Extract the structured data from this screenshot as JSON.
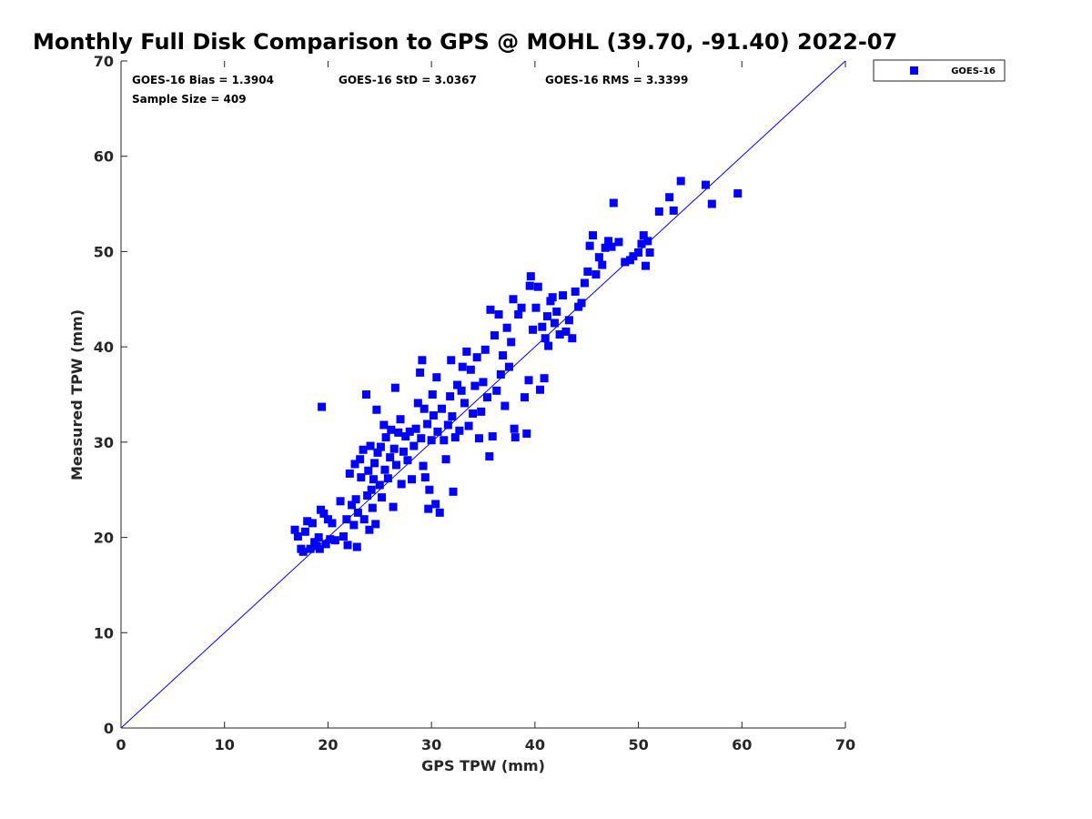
{
  "chart_data": {
    "type": "scatter",
    "title": "Monthly Full Disk Comparison to GPS @ MOHL (39.70, -91.40) 2022-07",
    "xlabel": "GPS TPW (mm)",
    "ylabel": "Measured TPW (mm)",
    "xlim": [
      0,
      70
    ],
    "ylim": [
      0,
      70
    ],
    "xticks": [
      0,
      10,
      20,
      30,
      40,
      50,
      60,
      70
    ],
    "yticks": [
      0,
      10,
      20,
      30,
      40,
      50,
      60,
      70
    ],
    "grid": false,
    "legend_position": "outside top-right",
    "stats": {
      "bias": "GOES-16 Bias = 1.3904",
      "std": "GOES-16 StD = 3.0367",
      "rms": "GOES-16 RMS = 3.3399",
      "sample": "Sample Size = 409"
    },
    "reference_line": {
      "from": [
        0,
        0
      ],
      "to": [
        70,
        70
      ],
      "color": "#0000ff"
    },
    "series": [
      {
        "name": "GOES-16",
        "color": "#0000ff",
        "marker": "square",
        "points": [
          [
            16.8,
            20.8
          ],
          [
            17.1,
            20.1
          ],
          [
            17.4,
            18.8
          ],
          [
            17.6,
            18.5
          ],
          [
            17.8,
            20.6
          ],
          [
            18.0,
            21.7
          ],
          [
            18.3,
            18.8
          ],
          [
            18.5,
            21.5
          ],
          [
            18.7,
            19.5
          ],
          [
            18.9,
            19.1
          ],
          [
            19.1,
            20.0
          ],
          [
            19.2,
            18.8
          ],
          [
            19.3,
            22.9
          ],
          [
            19.4,
            33.7
          ],
          [
            19.6,
            22.5
          ],
          [
            19.8,
            19.3
          ],
          [
            20.0,
            21.9
          ],
          [
            20.2,
            19.8
          ],
          [
            20.4,
            21.5
          ],
          [
            20.7,
            19.7
          ],
          [
            21.2,
            23.8
          ],
          [
            21.5,
            20.1
          ],
          [
            21.8,
            21.9
          ],
          [
            21.9,
            19.2
          ],
          [
            22.1,
            26.7
          ],
          [
            22.3,
            23.4
          ],
          [
            22.5,
            21.3
          ],
          [
            22.6,
            27.7
          ],
          [
            22.7,
            24.0
          ],
          [
            22.8,
            19.0
          ],
          [
            22.9,
            22.6
          ],
          [
            23.1,
            28.2
          ],
          [
            23.2,
            26.3
          ],
          [
            23.4,
            29.2
          ],
          [
            23.5,
            21.9
          ],
          [
            23.7,
            35.0
          ],
          [
            23.8,
            24.4
          ],
          [
            23.9,
            27.0
          ],
          [
            24.0,
            20.8
          ],
          [
            24.1,
            29.6
          ],
          [
            24.2,
            25.0
          ],
          [
            24.3,
            23.1
          ],
          [
            24.4,
            26.1
          ],
          [
            24.5,
            27.8
          ],
          [
            24.6,
            21.4
          ],
          [
            24.7,
            33.4
          ],
          [
            24.8,
            28.9
          ],
          [
            25.0,
            25.5
          ],
          [
            25.1,
            29.5
          ],
          [
            25.2,
            24.2
          ],
          [
            25.4,
            31.8
          ],
          [
            25.5,
            27.1
          ],
          [
            25.6,
            30.5
          ],
          [
            25.8,
            26.2
          ],
          [
            26.0,
            28.4
          ],
          [
            26.1,
            31.3
          ],
          [
            26.3,
            23.2
          ],
          [
            26.4,
            29.3
          ],
          [
            26.5,
            35.7
          ],
          [
            26.6,
            27.6
          ],
          [
            26.8,
            31.0
          ],
          [
            27.0,
            32.4
          ],
          [
            27.1,
            25.6
          ],
          [
            27.3,
            29.0
          ],
          [
            27.5,
            30.6
          ],
          [
            27.7,
            28.1
          ],
          [
            27.9,
            31.1
          ],
          [
            28.1,
            26.1
          ],
          [
            28.3,
            29.6
          ],
          [
            28.5,
            31.4
          ],
          [
            28.7,
            34.1
          ],
          [
            28.9,
            37.3
          ],
          [
            29.0,
            30.4
          ],
          [
            29.1,
            38.6
          ],
          [
            29.2,
            27.5
          ],
          [
            29.3,
            33.5
          ],
          [
            29.4,
            26.3
          ],
          [
            29.6,
            31.9
          ],
          [
            29.7,
            23.0
          ],
          [
            29.8,
            25.0
          ],
          [
            30.0,
            30.2
          ],
          [
            30.1,
            35.0
          ],
          [
            30.2,
            32.8
          ],
          [
            30.4,
            23.5
          ],
          [
            30.5,
            36.8
          ],
          [
            30.6,
            31.1
          ],
          [
            30.8,
            22.6
          ],
          [
            31.0,
            33.5
          ],
          [
            31.2,
            30.2
          ],
          [
            31.4,
            28.2
          ],
          [
            31.6,
            31.8
          ],
          [
            31.8,
            34.8
          ],
          [
            31.9,
            38.6
          ],
          [
            32.0,
            32.7
          ],
          [
            32.1,
            24.8
          ],
          [
            32.3,
            30.5
          ],
          [
            32.5,
            36.0
          ],
          [
            32.7,
            31.2
          ],
          [
            32.9,
            35.4
          ],
          [
            33.0,
            37.9
          ],
          [
            33.2,
            34.1
          ],
          [
            33.4,
            39.5
          ],
          [
            33.6,
            31.7
          ],
          [
            33.8,
            37.6
          ],
          [
            34.0,
            33.0
          ],
          [
            34.2,
            35.9
          ],
          [
            34.4,
            38.9
          ],
          [
            34.6,
            30.4
          ],
          [
            34.8,
            33.2
          ],
          [
            35.0,
            36.3
          ],
          [
            35.2,
            39.7
          ],
          [
            35.4,
            34.7
          ],
          [
            35.6,
            28.5
          ],
          [
            35.7,
            43.9
          ],
          [
            35.9,
            30.6
          ],
          [
            36.1,
            41.2
          ],
          [
            36.3,
            35.4
          ],
          [
            36.5,
            43.4
          ],
          [
            36.7,
            37.1
          ],
          [
            36.9,
            39.1
          ],
          [
            37.1,
            33.8
          ],
          [
            37.3,
            42.0
          ],
          [
            37.5,
            37.9
          ],
          [
            37.7,
            40.5
          ],
          [
            37.9,
            45.0
          ],
          [
            38.0,
            31.4
          ],
          [
            38.1,
            30.5
          ],
          [
            38.4,
            43.4
          ],
          [
            38.7,
            44.1
          ],
          [
            39.0,
            34.7
          ],
          [
            39.2,
            30.9
          ],
          [
            39.4,
            36.5
          ],
          [
            39.5,
            46.4
          ],
          [
            39.6,
            47.4
          ],
          [
            39.8,
            41.8
          ],
          [
            40.1,
            44.1
          ],
          [
            40.3,
            46.3
          ],
          [
            40.5,
            35.5
          ],
          [
            40.7,
            42.1
          ],
          [
            40.9,
            36.7
          ],
          [
            41.0,
            40.9
          ],
          [
            41.2,
            43.2
          ],
          [
            41.3,
            40.1
          ],
          [
            41.5,
            44.8
          ],
          [
            41.7,
            45.2
          ],
          [
            41.9,
            42.5
          ],
          [
            42.1,
            43.7
          ],
          [
            42.4,
            41.3
          ],
          [
            42.7,
            45.4
          ],
          [
            43.0,
            41.6
          ],
          [
            43.3,
            42.8
          ],
          [
            43.6,
            40.9
          ],
          [
            43.9,
            45.8
          ],
          [
            44.2,
            44.2
          ],
          [
            44.5,
            44.6
          ],
          [
            44.8,
            46.7
          ],
          [
            45.1,
            47.9
          ],
          [
            45.3,
            50.6
          ],
          [
            45.6,
            51.7
          ],
          [
            45.9,
            47.6
          ],
          [
            46.2,
            49.4
          ],
          [
            46.5,
            48.6
          ],
          [
            46.8,
            50.4
          ],
          [
            47.1,
            51.1
          ],
          [
            47.4,
            50.5
          ],
          [
            47.6,
            55.1
          ],
          [
            48.1,
            51.0
          ],
          [
            48.7,
            48.9
          ],
          [
            49.2,
            49.1
          ],
          [
            49.5,
            49.5
          ],
          [
            50.0,
            49.9
          ],
          [
            50.3,
            50.8
          ],
          [
            50.5,
            51.7
          ],
          [
            50.7,
            48.5
          ],
          [
            50.9,
            51.1
          ],
          [
            51.1,
            49.9
          ],
          [
            52.0,
            54.2
          ],
          [
            53.0,
            55.7
          ],
          [
            53.4,
            54.3
          ],
          [
            54.1,
            57.4
          ],
          [
            56.5,
            57.0
          ],
          [
            57.1,
            55.0
          ],
          [
            59.6,
            56.1
          ]
        ]
      }
    ]
  }
}
